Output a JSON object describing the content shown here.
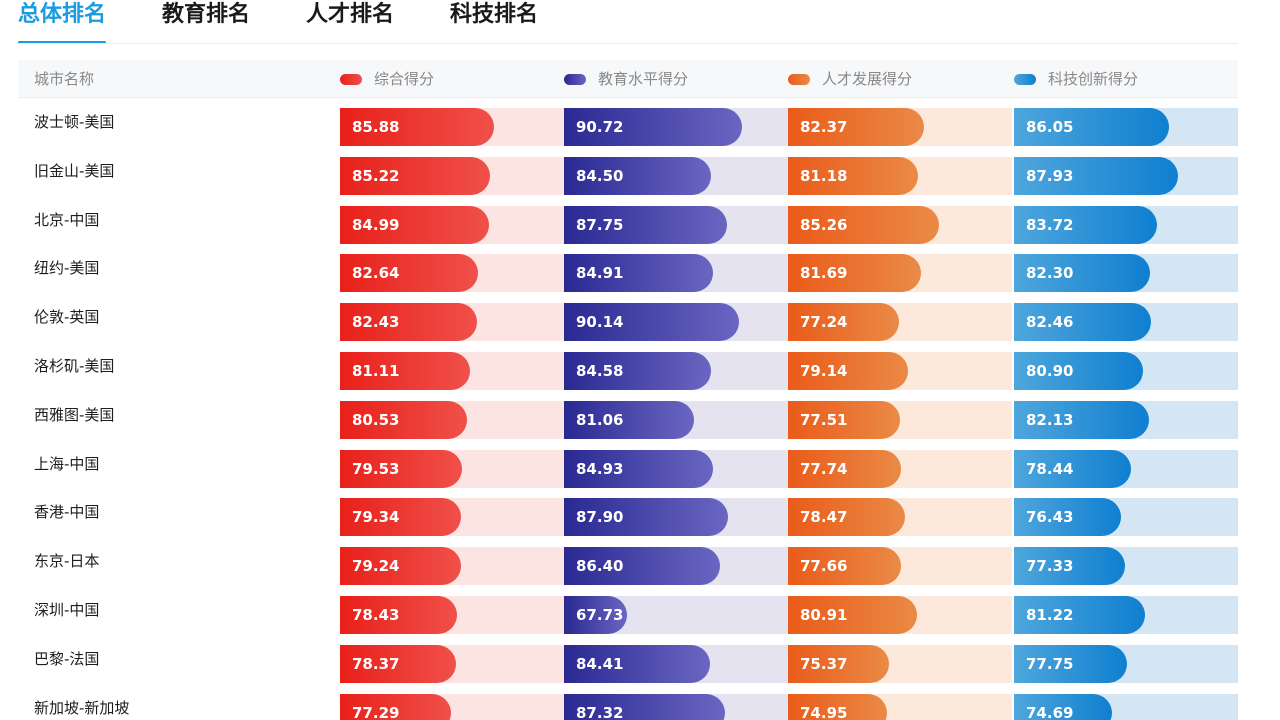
{
  "tabs": [
    {
      "label": "总体排名",
      "active": true
    },
    {
      "label": "教育排名",
      "active": false
    },
    {
      "label": "人才排名",
      "active": false
    },
    {
      "label": "科技排名",
      "active": false
    }
  ],
  "table": {
    "columns": [
      "城市名称",
      "综合得分",
      "教育水平得分",
      "人才发展得分",
      "科技创新得分"
    ],
    "rows": [
      {
        "city": "波士顿-美国",
        "scores": [
          "85.88",
          "90.72",
          "82.37",
          "86.05"
        ]
      },
      {
        "city": "旧金山-美国",
        "scores": [
          "85.22",
          "84.50",
          "81.18",
          "87.93"
        ]
      },
      {
        "city": "北京-中国",
        "scores": [
          "84.99",
          "87.75",
          "85.26",
          "83.72"
        ]
      },
      {
        "city": "纽约-美国",
        "scores": [
          "82.64",
          "84.91",
          "81.69",
          "82.30"
        ]
      },
      {
        "city": "伦敦-英国",
        "scores": [
          "82.43",
          "90.14",
          "77.24",
          "82.46"
        ]
      },
      {
        "city": "洛杉矶-美国",
        "scores": [
          "81.11",
          "84.58",
          "79.14",
          "80.90"
        ]
      },
      {
        "city": "西雅图-美国",
        "scores": [
          "80.53",
          "81.06",
          "77.51",
          "82.13"
        ]
      },
      {
        "city": "上海-中国",
        "scores": [
          "79.53",
          "84.93",
          "77.74",
          "78.44"
        ]
      },
      {
        "city": "香港-中国",
        "scores": [
          "79.34",
          "87.90",
          "78.47",
          "76.43"
        ]
      },
      {
        "city": "东京-日本",
        "scores": [
          "79.24",
          "86.40",
          "77.66",
          "77.33"
        ]
      },
      {
        "city": "深圳-中国",
        "scores": [
          "78.43",
          "67.73",
          "80.91",
          "81.22"
        ]
      },
      {
        "city": "巴黎-法国",
        "scores": [
          "78.37",
          "84.41",
          "75.37",
          "77.75"
        ]
      },
      {
        "city": "新加坡-新加坡",
        "scores": [
          "77.29",
          "87.32",
          "74.95",
          "74.69"
        ]
      }
    ]
  },
  "colors": {
    "active_tab": "#1a9be0",
    "composite": "#e8201a",
    "education": "#2a2992",
    "talent": "#ea5b1a",
    "technology": "#0f7fd0"
  }
}
